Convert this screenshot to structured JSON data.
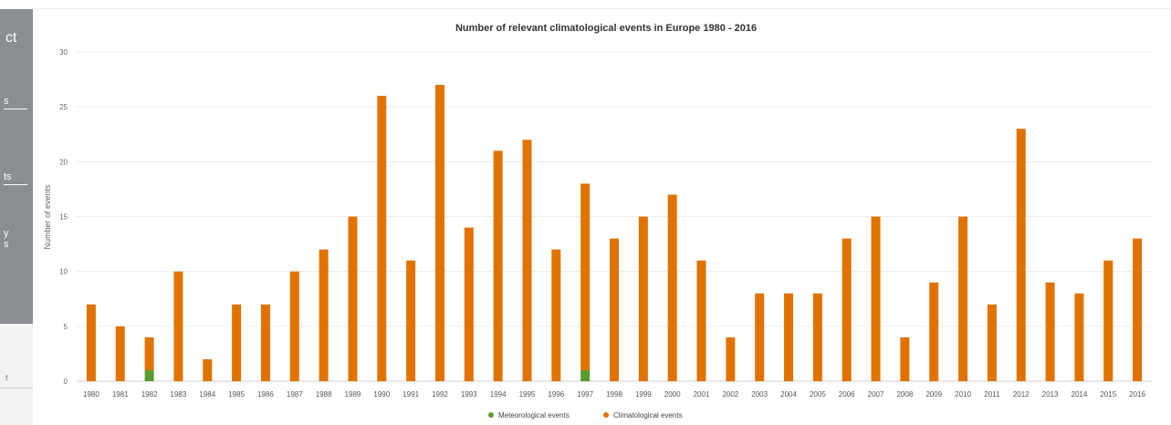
{
  "sidebar": {
    "fragments": [
      "ct",
      "s",
      "ts",
      "y\ns",
      "r"
    ]
  },
  "legend": {
    "items": [
      {
        "label": "Meteorological events",
        "color": "#5a9a2f"
      },
      {
        "label": "Climatological events",
        "color": "#e07300"
      }
    ]
  },
  "chart_data": {
    "type": "bar",
    "stacked": true,
    "title": "Number of relevant climatological events in Europe 1980 - 2016",
    "xlabel": "",
    "ylabel": "Number of events",
    "ylim": [
      0,
      30
    ],
    "yticks": [
      0,
      5,
      10,
      15,
      20,
      25,
      30
    ],
    "grid": true,
    "legend_position": "bottom",
    "categories": [
      "1980",
      "1981",
      "1982",
      "1983",
      "1984",
      "1985",
      "1986",
      "1987",
      "1988",
      "1989",
      "1990",
      "1991",
      "1992",
      "1993",
      "1994",
      "1995",
      "1996",
      "1997",
      "1998",
      "1999",
      "2000",
      "2001",
      "2002",
      "2003",
      "2004",
      "2005",
      "2006",
      "2007",
      "2008",
      "2009",
      "2010",
      "2011",
      "2012",
      "2013",
      "2014",
      "2015",
      "2016"
    ],
    "series": [
      {
        "name": "Meteorological events",
        "color": "#5a9a2f",
        "values": [
          0,
          0,
          1,
          0,
          0,
          0,
          0,
          0,
          0,
          0,
          0,
          0,
          0,
          0,
          0,
          0,
          0,
          1,
          0,
          0,
          0,
          0,
          0,
          0,
          0,
          0,
          0,
          0,
          0,
          0,
          0,
          0,
          0,
          0,
          0,
          0,
          0
        ]
      },
      {
        "name": "Climatological events",
        "color": "#e07300",
        "values": [
          7,
          5,
          3,
          10,
          2,
          7,
          7,
          10,
          12,
          15,
          26,
          11,
          27,
          14,
          21,
          22,
          12,
          17,
          13,
          15,
          17,
          11,
          4,
          8,
          8,
          8,
          13,
          15,
          4,
          9,
          15,
          7,
          23,
          9,
          8,
          11,
          13
        ]
      }
    ]
  }
}
